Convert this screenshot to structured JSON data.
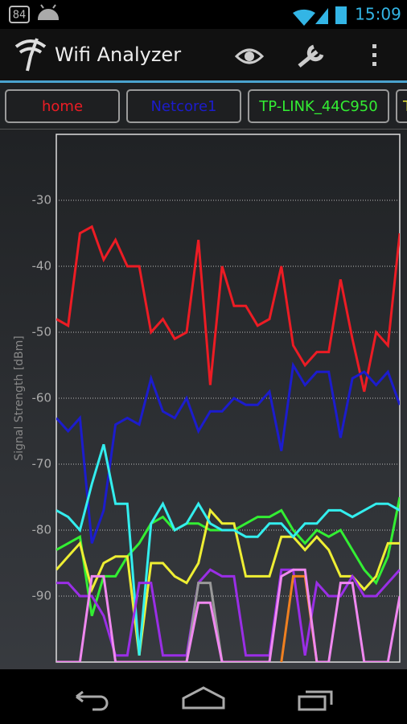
{
  "status_bar": {
    "badge": "84",
    "time": "15:09"
  },
  "app_bar": {
    "title": "Wifi Analyzer"
  },
  "chart_data": {
    "type": "line",
    "ylabel": "Signal Strength [dBm]",
    "ylim": [
      -100,
      -20
    ],
    "yticks": [
      -30,
      -40,
      -50,
      -60,
      -70,
      -80,
      -90
    ],
    "grid": true,
    "series": [
      {
        "name": "home",
        "color": "#ec1c24",
        "values": [
          -48,
          -49,
          -35,
          -34,
          -39,
          -36,
          -40,
          -40,
          -50,
          -48,
          -51,
          -50,
          -36,
          -58,
          -40,
          -46,
          -46,
          -49,
          -48,
          -40,
          -52,
          -55,
          -53,
          -53,
          -42,
          -51,
          -59,
          -50,
          -52,
          -35
        ]
      },
      {
        "name": "Netcore1",
        "color": "#1c1ccc",
        "values": [
          -63,
          -65,
          -63,
          -82,
          -77,
          -64,
          -63,
          -64,
          -57,
          -62,
          -63,
          -60,
          -65,
          -62,
          -62,
          -60,
          -61,
          -61,
          -59,
          -68,
          -55,
          -58,
          -56,
          -56,
          -66,
          -57,
          -56,
          -58,
          -56,
          -61
        ]
      },
      {
        "name": "TP-LINK_44C950",
        "color": "#33ee33",
        "values": [
          -83,
          -82,
          -81,
          -93,
          -87,
          -87,
          -84,
          -82,
          -79,
          -78,
          -80,
          -79,
          -79,
          -80,
          -80,
          -80,
          -79,
          -78,
          -78,
          -77,
          -80,
          -82,
          -80,
          -81,
          -80,
          -83,
          -86,
          -88,
          -84,
          -75
        ]
      },
      {
        "name": "T",
        "color": "#eeee33",
        "values": [
          -86,
          -84,
          -82,
          -89,
          -85,
          -84,
          -84,
          -99,
          -85,
          -85,
          -87,
          -88,
          -85,
          -77,
          -79,
          -79,
          -87,
          -87,
          -87,
          -81,
          -81,
          -83,
          -81,
          -83,
          -87,
          -87,
          -89,
          -87,
          -82,
          -82
        ]
      },
      {
        "color": "#33eeee",
        "values": [
          -77,
          -78,
          -80,
          -73,
          -67,
          -76,
          -76,
          -99,
          -79,
          -76,
          -80,
          -79,
          -76,
          -79,
          -80,
          -80,
          -81,
          -81,
          -79,
          -79,
          -81,
          -79,
          -79,
          -77,
          -77,
          -78,
          -77,
          -76,
          -76,
          -77
        ]
      },
      {
        "color": "#9a2ee6",
        "values": [
          -88,
          -88,
          -90,
          -90,
          -93,
          -99,
          -99,
          -88,
          -88,
          -99,
          -99,
          -99,
          -88,
          -86,
          -87,
          -87,
          -99,
          -99,
          -99,
          -86,
          -86,
          -99,
          -88,
          -90,
          -90,
          -87,
          -90,
          -90,
          -88,
          -86
        ]
      },
      {
        "color": "#999999",
        "values": [
          null,
          null,
          null,
          null,
          null,
          null,
          null,
          null,
          null,
          null,
          null,
          -100,
          -88,
          -88,
          -100,
          null,
          null,
          null,
          null,
          null,
          null,
          null,
          null,
          null,
          null,
          null,
          null,
          null,
          null,
          null
        ]
      },
      {
        "color": "#f08020",
        "values": [
          null,
          null,
          null,
          null,
          null,
          null,
          null,
          null,
          null,
          null,
          null,
          null,
          null,
          null,
          null,
          null,
          null,
          null,
          null,
          -100,
          -87,
          -87,
          -100,
          null,
          null,
          null,
          null,
          null,
          null,
          null
        ]
      },
      {
        "color": "#f088f0",
        "values": [
          -100,
          -100,
          -100,
          -87,
          -87,
          -100,
          -100,
          -100,
          -100,
          -100,
          -100,
          -100,
          -91,
          -91,
          -100,
          -100,
          -100,
          -100,
          -100,
          -87,
          -86,
          -86,
          -100,
          -100,
          -88,
          -88,
          -100,
          -100,
          -100,
          -90
        ]
      }
    ]
  }
}
